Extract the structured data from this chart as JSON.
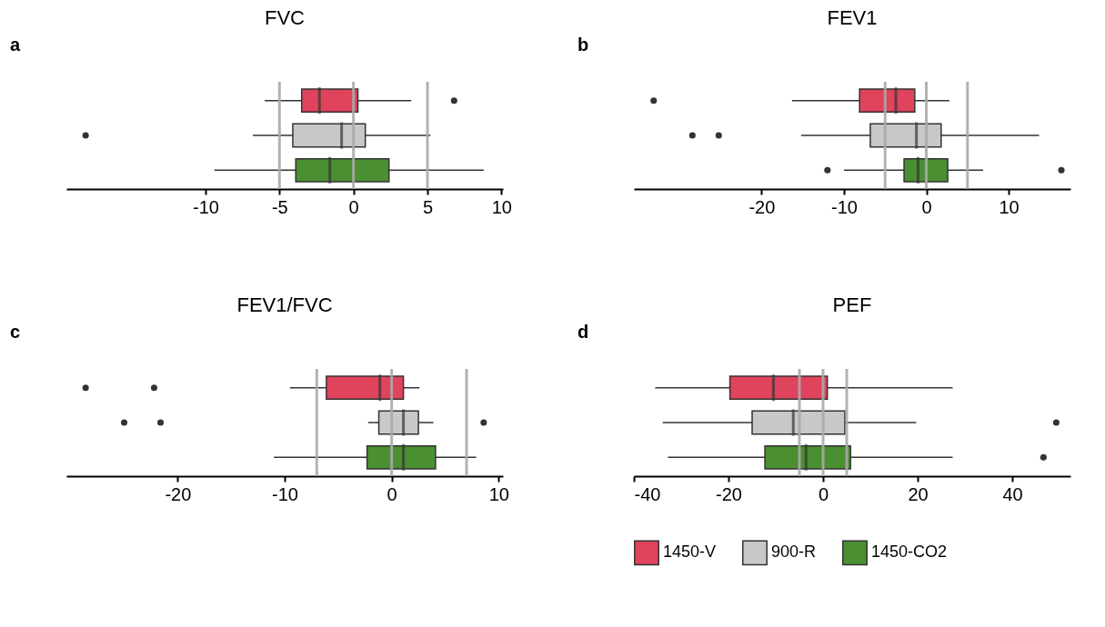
{
  "chart_data": [
    {
      "type": "box",
      "orientation": "horizontal",
      "title": "FVC",
      "annotations": [
        "a"
      ],
      "categories": [
        null
      ],
      "xlim": [
        -19.4,
        10.1
      ],
      "xticks": [
        -10,
        -5,
        0,
        5,
        10
      ],
      "tick_labels": "x",
      "grid": false,
      "ref_lines": [
        {
          "axis": "x",
          "value": -5,
          "color": "#aaaaaa"
        },
        {
          "axis": "x",
          "value": 0,
          "color": "#aaaaaa"
        },
        {
          "axis": "x",
          "value": 5,
          "color": "#aaaaaa"
        }
      ],
      "series": [
        {
          "color": "#e0435c",
          "boxes": [
            {
              "low": -6.0,
              "q1": -3.5,
              "median": -2.3,
              "q3": 0.3,
              "high": 3.9,
              "outliers": [
                6.8
              ]
            }
          ]
        },
        {
          "color": "#c8c8c8",
          "boxes": [
            {
              "low": -6.8,
              "q1": -4.1,
              "median": -0.8,
              "q3": 0.8,
              "high": 5.2,
              "outliers": [
                -18.1
              ]
            }
          ]
        },
        {
          "color": "#4a8f31",
          "boxes": [
            {
              "low": -9.4,
              "q1": -3.9,
              "median": -1.6,
              "q3": 2.4,
              "high": 8.8
            }
          ]
        }
      ]
    },
    {
      "type": "box",
      "orientation": "horizontal",
      "title": "FEV1",
      "annotations": [
        "b"
      ],
      "categories": [
        null
      ],
      "xlim": [
        -35.5,
        17.5
      ],
      "xticks": [
        -20,
        -10,
        0,
        10
      ],
      "tick_labels": "x",
      "grid": false,
      "ref_lines": [
        {
          "axis": "x",
          "value": -5,
          "color": "#aaaaaa"
        },
        {
          "axis": "x",
          "value": 0,
          "color": "#aaaaaa"
        },
        {
          "axis": "x",
          "value": 5,
          "color": "#aaaaaa"
        }
      ],
      "series": [
        {
          "color": "#e0435c",
          "boxes": [
            {
              "low": -16.3,
              "q1": -8.1,
              "median": -3.7,
              "q3": -1.4,
              "high": 2.8,
              "outliers": [
                -33.1
              ]
            }
          ]
        },
        {
          "color": "#c8c8c8",
          "boxes": [
            {
              "low": -15.2,
              "q1": -6.8,
              "median": -1.2,
              "q3": 1.8,
              "high": 13.7,
              "outliers": [
                -28.4,
                -25.2
              ]
            }
          ]
        },
        {
          "color": "#4a8f31",
          "boxes": [
            {
              "low": -10.0,
              "q1": -2.7,
              "median": -1.0,
              "q3": 2.6,
              "high": 6.9,
              "outliers": [
                -12.0,
                16.4
              ]
            }
          ]
        }
      ]
    },
    {
      "type": "box",
      "orientation": "horizontal",
      "title": "FEV1/FVC",
      "annotations": [
        "c"
      ],
      "categories": [
        null
      ],
      "xlim": [
        -30.4,
        10.4
      ],
      "xticks": [
        -20,
        -10,
        0,
        10
      ],
      "tick_labels": "x",
      "grid": false,
      "ref_lines": [
        {
          "axis": "x",
          "value": -7,
          "color": "#aaaaaa"
        },
        {
          "axis": "x",
          "value": 0,
          "color": "#aaaaaa"
        },
        {
          "axis": "x",
          "value": 7,
          "color": "#aaaaaa"
        }
      ],
      "series": [
        {
          "color": "#e0435c",
          "boxes": [
            {
              "low": -9.5,
              "q1": -6.1,
              "median": -1.1,
              "q3": 1.1,
              "high": 2.6,
              "outliers": [
                -28.6,
                -22.2
              ]
            }
          ]
        },
        {
          "color": "#c8c8c8",
          "boxes": [
            {
              "low": -2.2,
              "q1": -1.2,
              "median": 1.1,
              "q3": 2.5,
              "high": 3.9,
              "outliers": [
                -25.0,
                -21.6,
                8.6
              ]
            }
          ]
        },
        {
          "color": "#4a8f31",
          "boxes": [
            {
              "low": -11.0,
              "q1": -2.3,
              "median": 1.1,
              "q3": 4.1,
              "high": 7.9
            }
          ]
        }
      ]
    },
    {
      "type": "box",
      "orientation": "horizontal",
      "title": "PEF",
      "annotations": [
        "d"
      ],
      "categories": [
        null
      ],
      "xlim": [
        -40,
        52.3
      ],
      "xticks": [
        -40,
        -20,
        0,
        20,
        40
      ],
      "tick_labels": "x",
      "grid": false,
      "legend": "bottom",
      "ref_lines": [
        {
          "axis": "x",
          "value": -5,
          "color": "#aaaaaa"
        },
        {
          "axis": "x",
          "value": 0,
          "color": "#aaaaaa"
        },
        {
          "axis": "x",
          "value": 5,
          "color": "#aaaaaa"
        }
      ],
      "series": [
        {
          "name": "1450-V",
          "color": "#e0435c",
          "boxes": [
            {
              "low": -35.5,
              "q1": -19.7,
              "median": -10.5,
              "q3": 0.9,
              "high": 27.4
            }
          ]
        },
        {
          "name": "900-R",
          "color": "#c8c8c8",
          "boxes": [
            {
              "low": -33.9,
              "q1": -15.0,
              "median": -6.3,
              "q3": 4.6,
              "high": 19.7,
              "outliers": [
                49.3
              ]
            }
          ]
        },
        {
          "name": "1450-CO2",
          "color": "#4a8f31",
          "boxes": [
            {
              "low": -32.8,
              "q1": -12.3,
              "median": -3.6,
              "q3": 5.8,
              "high": 27.4,
              "outliers": [
                46.6
              ]
            }
          ]
        }
      ]
    }
  ]
}
